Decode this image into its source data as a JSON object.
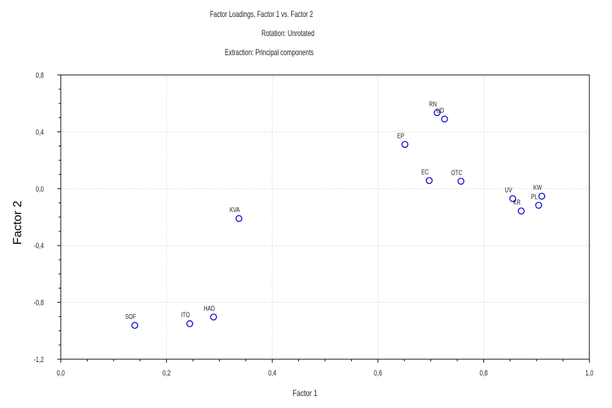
{
  "chart_data": {
    "type": "scatter",
    "title_lines": [
      "Factor Loadings, Factor 1 vs. Factor 2",
      "Rotation: Unrotated",
      "Extraction: Principal components"
    ],
    "xlabel": "Factor 1",
    "ylabel": "Factor 2",
    "xlim": [
      0.0,
      1.0
    ],
    "ylim": [
      -1.2,
      0.8
    ],
    "xticks": [
      "0,0",
      "0,2",
      "0,4",
      "0,6",
      "0,8",
      "1,0"
    ],
    "yticks": [
      "0,8",
      "0,4",
      "0,0",
      "-0,4",
      "-0,8",
      "-1,2"
    ],
    "xtick_values": [
      0.0,
      0.2,
      0.4,
      0.6,
      0.8,
      1.0
    ],
    "ytick_values": [
      0.8,
      0.4,
      0.0,
      -0.4,
      -0.8,
      -1.2
    ],
    "grid": true,
    "marker_color": "#0000c8",
    "points": [
      {
        "label": "RN",
        "x": 0.712,
        "y": 0.535
      },
      {
        "label": "UD",
        "x": 0.726,
        "y": 0.49
      },
      {
        "label": "EP",
        "x": 0.651,
        "y": 0.311
      },
      {
        "label": "EC",
        "x": 0.697,
        "y": 0.057
      },
      {
        "label": "OTC",
        "x": 0.757,
        "y": 0.052
      },
      {
        "label": "UV",
        "x": 0.855,
        "y": -0.07
      },
      {
        "label": "KW",
        "x": 0.91,
        "y": -0.053
      },
      {
        "label": "PL",
        "x": 0.904,
        "y": -0.117
      },
      {
        "label": "KR",
        "x": 0.871,
        "y": -0.157
      },
      {
        "label": "KVA",
        "x": 0.337,
        "y": -0.21
      },
      {
        "label": "SOF",
        "x": 0.14,
        "y": -0.962
      },
      {
        "label": "ITO",
        "x": 0.244,
        "y": -0.95
      },
      {
        "label": "HAD",
        "x": 0.289,
        "y": -0.903
      }
    ]
  }
}
